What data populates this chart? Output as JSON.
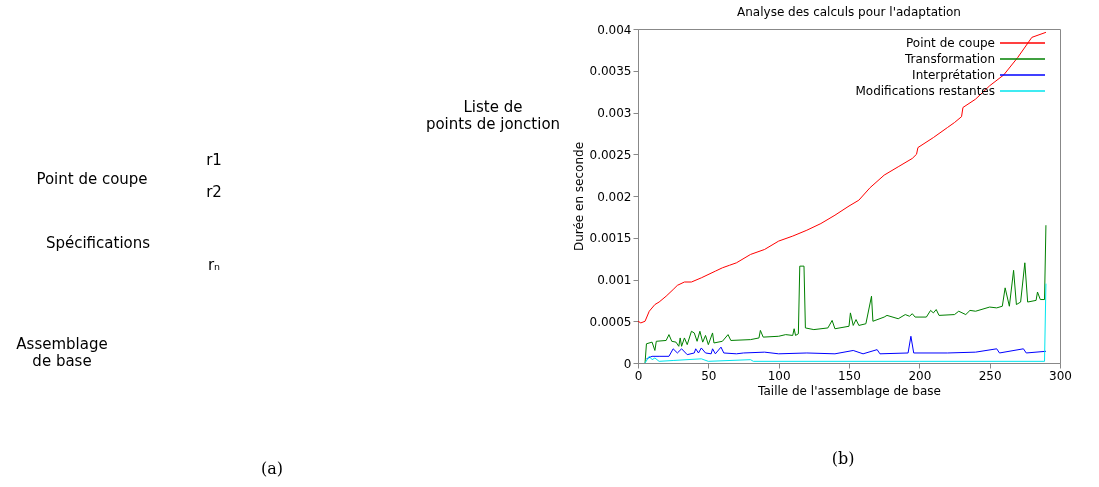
{
  "chart_data": [
    {
      "type": "other",
      "annotations": [
        "Point de coupe",
        "Spécifications",
        "r1",
        "r2",
        "rₙ",
        "Liste de\npoints de jonction",
        "Assemblage\nde base",
        "(a)"
      ]
    },
    {
      "type": "line",
      "title": "Analyse des calculs pour l'adaptation",
      "xlabel": "Taille de l'assemblage de base",
      "ylabel": "Durée en seconde",
      "xlim": [
        0,
        300
      ],
      "xticks": [
        0,
        50,
        100,
        150,
        200,
        250,
        300
      ],
      "ylim": [
        0,
        0.004
      ],
      "yticks": [
        0,
        0.0005,
        0.001,
        0.0015,
        0.002,
        0.0025,
        0.003,
        0.0035,
        0.004
      ],
      "grid": false,
      "legend": "top right",
      "marker": "none",
      "line_style": "solid",
      "annotations": [
        "(b)"
      ],
      "series": [
        {
          "name": "Point de coupe",
          "color": "#ff0000",
          "x": [
            0,
            2,
            5,
            8,
            12,
            15,
            20,
            25,
            28,
            33,
            38,
            45,
            55,
            60,
            65,
            70,
            80,
            90,
            100,
            110,
            120,
            130,
            140,
            150,
            157,
            165,
            175,
            185,
            195,
            198,
            199,
            210,
            220,
            225,
            230,
            231,
            240,
            250,
            260,
            270,
            280,
            290
          ],
          "values": [
            0.0005,
            0.00048,
            0.0005,
            0.00062,
            0.0007,
            0.00073,
            0.0008,
            0.00088,
            0.00093,
            0.00097,
            0.00097,
            0.00102,
            0.0011,
            0.00114,
            0.00117,
            0.0012,
            0.0013,
            0.00136,
            0.00146,
            0.00152,
            0.00159,
            0.00167,
            0.00177,
            0.00188,
            0.00195,
            0.0021,
            0.00225,
            0.00235,
            0.00245,
            0.0025,
            0.00258,
            0.0027,
            0.00282,
            0.00288,
            0.00295,
            0.00306,
            0.00316,
            0.00332,
            0.00345,
            0.00366,
            0.0039,
            0.00396
          ]
        },
        {
          "name": "Transformation",
          "color": "#008000",
          "x": [
            5,
            6,
            10,
            12,
            13,
            20,
            22,
            24,
            27,
            29,
            30,
            31,
            33,
            35,
            38,
            40,
            42,
            44,
            46,
            48,
            50,
            53,
            54,
            60,
            64,
            66,
            80,
            86,
            87,
            89,
            100,
            105,
            110,
            111,
            112,
            114,
            115,
            118,
            119,
            125,
            135,
            138,
            140,
            150,
            151,
            153,
            155,
            157,
            162,
            166,
            167,
            175,
            177,
            185,
            190,
            193,
            195,
            197,
            205,
            208,
            210,
            212,
            214,
            225,
            228,
            233,
            236,
            240,
            250,
            255,
            259,
            261,
            264,
            267,
            269,
            272,
            275,
            277,
            283,
            284,
            286,
            289,
            290
          ],
          "values": [
            0,
            0.00023,
            0.00025,
            0.00015,
            0.00026,
            0.00027,
            0.00034,
            0.00026,
            0.00025,
            0.0002,
            0.0003,
            0.0002,
            0.0003,
            0.00022,
            0.00038,
            0.00036,
            0.00026,
            0.00038,
            0.00025,
            0.00033,
            0.00022,
            0.00036,
            0.00024,
            0.00026,
            0.00034,
            0.00027,
            0.00028,
            0.0003,
            0.00039,
            0.00031,
            0.00032,
            0.00034,
            0.00033,
            0.00041,
            0.00033,
            0.00035,
            0.00116,
            0.00116,
            0.00042,
            0.0004,
            0.00042,
            0.00051,
            0.00041,
            0.00044,
            0.0006,
            0.00045,
            0.00052,
            0.00045,
            0.00047,
            0.0008,
            0.0005,
            0.00055,
            0.00057,
            0.00053,
            0.00058,
            0.00056,
            0.00059,
            0.00055,
            0.00055,
            0.00063,
            0.0006,
            0.00064,
            0.00057,
            0.00058,
            0.00062,
            0.00058,
            0.00063,
            0.00062,
            0.00067,
            0.00066,
            0.00068,
            0.0009,
            0.00068,
            0.00111,
            0.0007,
            0.00073,
            0.0012,
            0.00073,
            0.00075,
            0.00085,
            0.00076,
            0.00076,
            0.00165
          ]
        },
        {
          "name": "Interprétation",
          "color": "#0000ff",
          "x": [
            6,
            10,
            15,
            22,
            25,
            28,
            31,
            35,
            40,
            41,
            43,
            45,
            48,
            52,
            53,
            55,
            59,
            61,
            70,
            75,
            90,
            100,
            120,
            140,
            153,
            160,
            170,
            172,
            192,
            194,
            196,
            220,
            240,
            255,
            257,
            274,
            276,
            290
          ],
          "values": [
            5e-05,
            8e-05,
            8e-05,
            8e-05,
            0.00017,
            0.00012,
            0.00017,
            0.0001,
            0.00012,
            0.00017,
            0.00012,
            0.00018,
            0.00012,
            0.00011,
            0.00017,
            0.00011,
            0.00019,
            0.00012,
            0.00011,
            0.00012,
            0.00013,
            0.00011,
            0.00012,
            0.00011,
            0.00015,
            0.00011,
            0.00016,
            0.00011,
            0.00012,
            0.00032,
            0.00012,
            0.00012,
            0.00013,
            0.00017,
            0.00012,
            0.00017,
            0.00012,
            0.00014
          ]
        },
        {
          "name": "Modifications restantes",
          "color": "#00e5ee",
          "x": [
            5,
            8,
            10,
            12,
            15,
            25,
            45,
            50,
            80,
            82,
            200,
            289,
            290
          ],
          "values": [
            0,
            8e-05,
            4e-05,
            6e-05,
            2e-05,
            3e-05,
            5e-05,
            2e-05,
            4e-05,
            2e-05,
            2e-05,
            2e-05,
            0.00095
          ]
        }
      ]
    }
  ]
}
